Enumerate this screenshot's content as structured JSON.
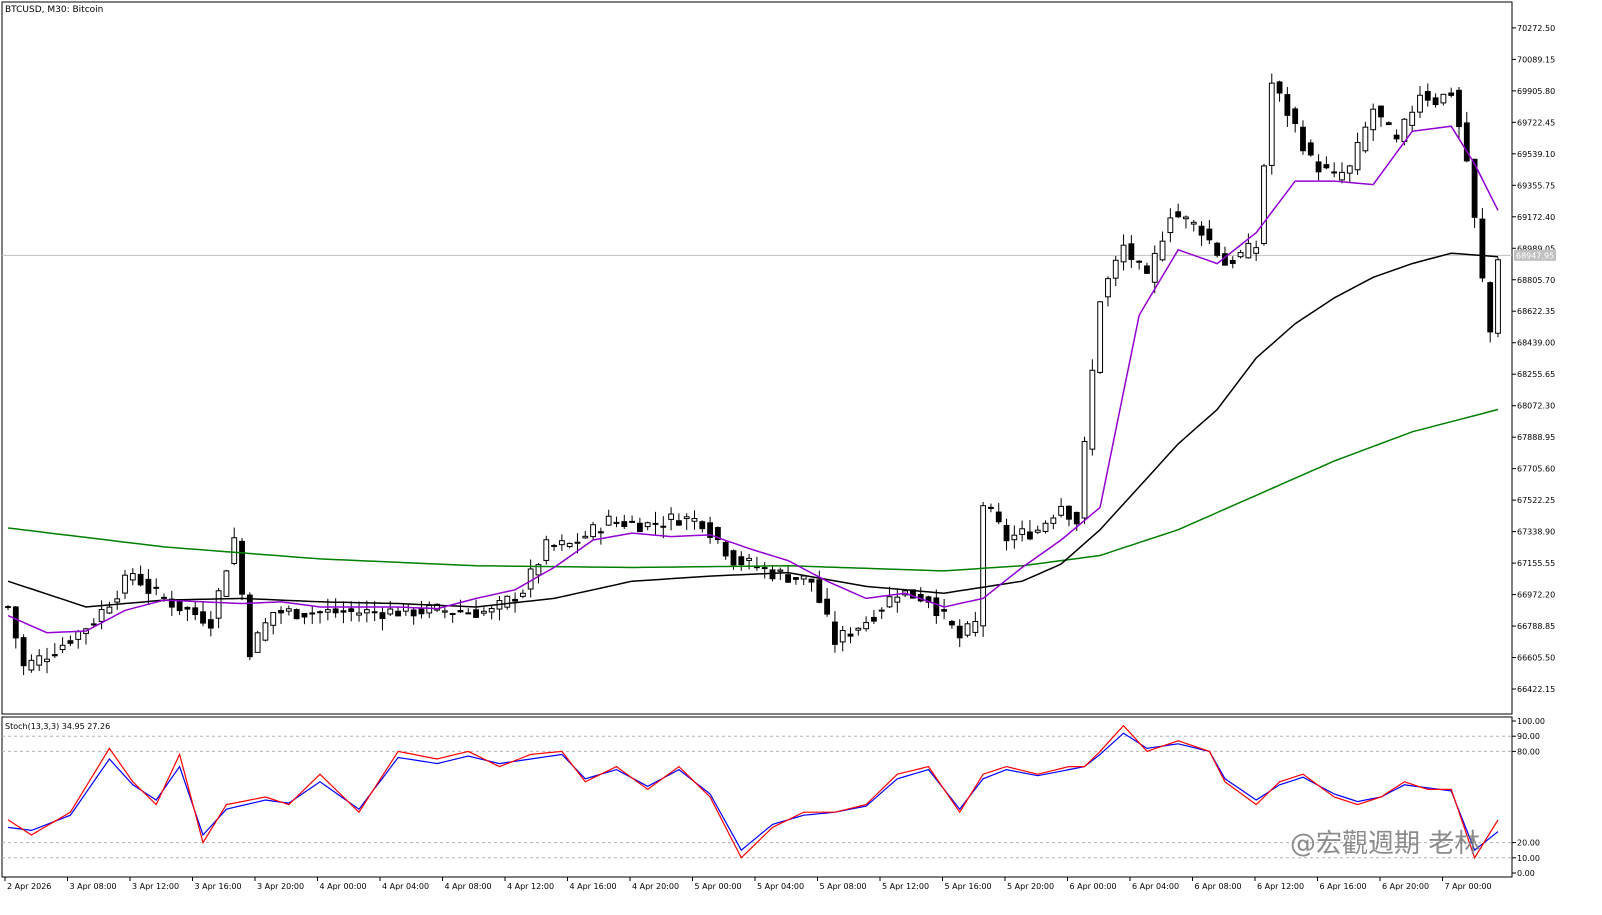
{
  "header": {
    "symbol": "BTCUSD",
    "timeframe": "M30",
    "description": "Bitcoin",
    "title": "BTCUSD, M30:  Bitcoin"
  },
  "oscillator": {
    "label": "Stoch(13,3,3) 34.95 27.26",
    "main_value": 34.95,
    "signal_value": 27.26,
    "levels": [
      90,
      80,
      20,
      10
    ],
    "axis_labels": [
      "100.00",
      "90.00",
      "80.00",
      "20.00",
      "10.00",
      "0.00"
    ],
    "main_color": "#ff0000",
    "signal_color": "#0000ff"
  },
  "watermark": "@宏觀週期 老林",
  "colors": {
    "ma_fast": "#9400d3",
    "ma_mid": "#000000",
    "ma_slow": "#008000",
    "candle_up": "#ffffff",
    "candle_down": "#000000",
    "current_price_line": "#c0c0c0"
  },
  "chart_data": [
    {
      "type": "candlestick",
      "title": "BTCUSD, M30:  Bitcoin",
      "ylim": [
        66300,
        70400
      ],
      "y_ticks": [
        "70272.50",
        "70089.15",
        "69905.80",
        "69722.45",
        "69539.10",
        "69355.75",
        "69172.40",
        "68989.05",
        "68805.70",
        "68622.35",
        "68439.00",
        "68255.65",
        "68072.30",
        "67888.95",
        "67705.60",
        "67522.25",
        "67338.90",
        "67155.55",
        "66972.20",
        "66788.85",
        "66605.50",
        "66422.15"
      ],
      "current_price": "68947.95",
      "x_labels": [
        "2 Apr 2026",
        "3 Apr 08:00",
        "3 Apr 12:00",
        "3 Apr 16:00",
        "3 Apr 20:00",
        "4 Apr 00:00",
        "4 Apr 04:00",
        "4 Apr 08:00",
        "4 Apr 12:00",
        "4 Apr 16:00",
        "4 Apr 20:00",
        "5 Apr 00:00",
        "5 Apr 04:00",
        "5 Apr 08:00",
        "5 Apr 12:00",
        "5 Apr 16:00",
        "5 Apr 20:00",
        "6 Apr 00:00",
        "6 Apr 04:00",
        "6 Apr 08:00",
        "6 Apr 12:00",
        "6 Apr 16:00",
        "6 Apr 20:00",
        "7 Apr 00:00"
      ],
      "candle_count": 192,
      "trend_points": [
        [
          0,
          66900
        ],
        [
          2,
          66550
        ],
        [
          6,
          66650
        ],
        [
          11,
          66820
        ],
        [
          16,
          67100
        ],
        [
          18,
          67000
        ],
        [
          22,
          66900
        ],
        [
          26,
          66820
        ],
        [
          29,
          67300
        ],
        [
          31,
          66650
        ],
        [
          34,
          66870
        ],
        [
          45,
          66870
        ],
        [
          55,
          66880
        ],
        [
          62,
          66870
        ],
        [
          66,
          67000
        ],
        [
          69,
          67250
        ],
        [
          72,
          67260
        ],
        [
          77,
          67400
        ],
        [
          82,
          67380
        ],
        [
          86,
          67420
        ],
        [
          89,
          67400
        ],
        [
          93,
          67180
        ],
        [
          98,
          67100
        ],
        [
          103,
          67050
        ],
        [
          106,
          66700
        ],
        [
          110,
          66820
        ],
        [
          114,
          66990
        ],
        [
          118,
          66950
        ],
        [
          122,
          66720
        ],
        [
          124,
          66800
        ],
        [
          125,
          67500
        ],
        [
          128,
          67300
        ],
        [
          132,
          67350
        ],
        [
          135,
          67500
        ],
        [
          137,
          67400
        ],
        [
          140,
          68700
        ],
        [
          143,
          69000
        ],
        [
          146,
          68800
        ],
        [
          149,
          69200
        ],
        [
          153,
          69100
        ],
        [
          156,
          68900
        ],
        [
          160,
          69000
        ],
        [
          162,
          69950
        ],
        [
          165,
          69700
        ],
        [
          167,
          69500
        ],
        [
          170,
          69400
        ],
        [
          172,
          69450
        ],
        [
          175,
          69800
        ],
        [
          178,
          69600
        ],
        [
          181,
          69900
        ],
        [
          183,
          69850
        ],
        [
          185,
          69900
        ],
        [
          187,
          69500
        ],
        [
          189,
          68800
        ],
        [
          190,
          68500
        ],
        [
          191,
          68947
        ]
      ],
      "ma_fast_points": [
        [
          0,
          66850
        ],
        [
          5,
          66750
        ],
        [
          10,
          66760
        ],
        [
          15,
          66880
        ],
        [
          20,
          66940
        ],
        [
          25,
          66930
        ],
        [
          30,
          66920
        ],
        [
          35,
          66930
        ],
        [
          40,
          66900
        ],
        [
          50,
          66900
        ],
        [
          55,
          66890
        ],
        [
          60,
          66950
        ],
        [
          65,
          67000
        ],
        [
          70,
          67130
        ],
        [
          75,
          67290
        ],
        [
          80,
          67330
        ],
        [
          85,
          67310
        ],
        [
          90,
          67320
        ],
        [
          95,
          67240
        ],
        [
          100,
          67170
        ],
        [
          105,
          67050
        ],
        [
          110,
          66950
        ],
        [
          115,
          66980
        ],
        [
          120,
          66900
        ],
        [
          125,
          66950
        ],
        [
          130,
          67130
        ],
        [
          135,
          67290
        ],
        [
          140,
          67480
        ],
        [
          145,
          68600
        ],
        [
          150,
          68980
        ],
        [
          155,
          68900
        ],
        [
          160,
          69080
        ],
        [
          165,
          69380
        ],
        [
          170,
          69380
        ],
        [
          175,
          69360
        ],
        [
          180,
          69670
        ],
        [
          185,
          69700
        ],
        [
          188,
          69480
        ],
        [
          191,
          69210
        ]
      ],
      "ma_mid_points": [
        [
          0,
          67050
        ],
        [
          10,
          66900
        ],
        [
          20,
          66940
        ],
        [
          30,
          66950
        ],
        [
          40,
          66930
        ],
        [
          50,
          66920
        ],
        [
          60,
          66900
        ],
        [
          70,
          66950
        ],
        [
          80,
          67050
        ],
        [
          90,
          67080
        ],
        [
          100,
          67100
        ],
        [
          110,
          67020
        ],
        [
          120,
          66980
        ],
        [
          130,
          67050
        ],
        [
          135,
          67150
        ],
        [
          140,
          67350
        ],
        [
          145,
          67600
        ],
        [
          150,
          67850
        ],
        [
          155,
          68050
        ],
        [
          160,
          68350
        ],
        [
          165,
          68550
        ],
        [
          170,
          68700
        ],
        [
          175,
          68820
        ],
        [
          180,
          68900
        ],
        [
          185,
          68960
        ],
        [
          191,
          68940
        ]
      ],
      "ma_slow_points": [
        [
          0,
          67360
        ],
        [
          20,
          67250
        ],
        [
          40,
          67180
        ],
        [
          60,
          67140
        ],
        [
          80,
          67130
        ],
        [
          100,
          67140
        ],
        [
          120,
          67110
        ],
        [
          130,
          67140
        ],
        [
          140,
          67200
        ],
        [
          150,
          67350
        ],
        [
          160,
          67550
        ],
        [
          170,
          67750
        ],
        [
          180,
          67920
        ],
        [
          191,
          68050
        ]
      ]
    },
    {
      "type": "line",
      "title": "Stoch(13,3,3) 34.95 27.26",
      "ylim": [
        0,
        100
      ],
      "series": [
        {
          "name": "",
          "points": [
            [
              0,
              35
            ],
            [
              3,
              25
            ],
            [
              8,
              40
            ],
            [
              13,
              82
            ],
            [
              16,
              60
            ],
            [
              19,
              45
            ],
            [
              22,
              78
            ],
            [
              25,
              20
            ],
            [
              28,
              45
            ],
            [
              33,
              50
            ],
            [
              36,
              45
            ],
            [
              40,
              65
            ],
            [
              45,
              40
            ],
            [
              50,
              80
            ],
            [
              55,
              75
            ],
            [
              59,
              80
            ],
            [
              63,
              70
            ],
            [
              67,
              78
            ],
            [
              71,
              80
            ],
            [
              74,
              60
            ],
            [
              78,
              70
            ],
            [
              82,
              55
            ],
            [
              86,
              70
            ],
            [
              90,
              50
            ],
            [
              94,
              10
            ],
            [
              98,
              30
            ],
            [
              102,
              40
            ],
            [
              106,
              40
            ],
            [
              110,
              45
            ],
            [
              114,
              65
            ],
            [
              118,
              70
            ],
            [
              122,
              40
            ],
            [
              125,
              65
            ],
            [
              128,
              70
            ],
            [
              132,
              65
            ],
            [
              136,
              70
            ],
            [
              138,
              70
            ],
            [
              140,
              80
            ],
            [
              143,
              97
            ],
            [
              146,
              80
            ],
            [
              150,
              87
            ],
            [
              154,
              80
            ],
            [
              156,
              60
            ],
            [
              160,
              45
            ],
            [
              163,
              60
            ],
            [
              166,
              65
            ],
            [
              170,
              50
            ],
            [
              173,
              45
            ],
            [
              176,
              50
            ],
            [
              179,
              60
            ],
            [
              182,
              55
            ],
            [
              185,
              55
            ],
            [
              188,
              10
            ],
            [
              191,
              34.95
            ]
          ]
        },
        {
          "name": "",
          "points": [
            [
              0,
              30
            ],
            [
              3,
              28
            ],
            [
              8,
              38
            ],
            [
              13,
              75
            ],
            [
              16,
              58
            ],
            [
              19,
              48
            ],
            [
              22,
              70
            ],
            [
              25,
              25
            ],
            [
              28,
              42
            ],
            [
              33,
              48
            ],
            [
              36,
              46
            ],
            [
              40,
              60
            ],
            [
              45,
              42
            ],
            [
              50,
              76
            ],
            [
              55,
              72
            ],
            [
              59,
              77
            ],
            [
              63,
              72
            ],
            [
              67,
              75
            ],
            [
              71,
              78
            ],
            [
              74,
              62
            ],
            [
              78,
              68
            ],
            [
              82,
              57
            ],
            [
              86,
              68
            ],
            [
              90,
              52
            ],
            [
              94,
              15
            ],
            [
              98,
              32
            ],
            [
              102,
              38
            ],
            [
              106,
              40
            ],
            [
              110,
              44
            ],
            [
              114,
              62
            ],
            [
              118,
              68
            ],
            [
              122,
              42
            ],
            [
              125,
              62
            ],
            [
              128,
              68
            ],
            [
              132,
              64
            ],
            [
              136,
              68
            ],
            [
              138,
              70
            ],
            [
              140,
              78
            ],
            [
              143,
              92
            ],
            [
              146,
              82
            ],
            [
              150,
              85
            ],
            [
              154,
              80
            ],
            [
              156,
              62
            ],
            [
              160,
              48
            ],
            [
              163,
              58
            ],
            [
              166,
              63
            ],
            [
              170,
              52
            ],
            [
              173,
              47
            ],
            [
              176,
              50
            ],
            [
              179,
              58
            ],
            [
              182,
              56
            ],
            [
              185,
              54
            ],
            [
              188,
              15
            ],
            [
              191,
              27.26
            ]
          ]
        }
      ]
    }
  ]
}
